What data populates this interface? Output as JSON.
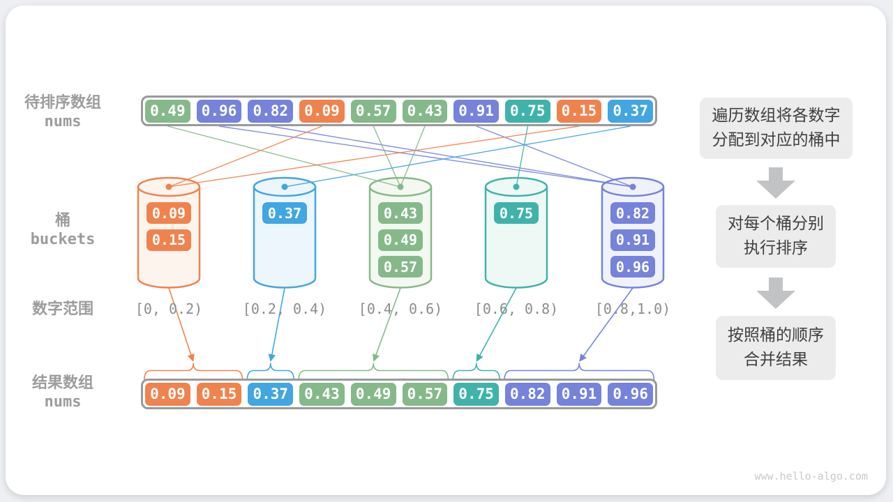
{
  "palette": {
    "orange": "#F0824E",
    "blue": "#41A6E1",
    "green": "#85B98A",
    "teal": "#3FB3A9",
    "purple": "#7583DB",
    "orange_fill": "#FDF4EE",
    "blue_fill": "#EDF6FC",
    "green_fill": "#F3F8F1",
    "teal_fill": "#EEF8F5",
    "purple_fill": "#F0F2FB",
    "label_gray": "#9C9C9C",
    "range_gray": "#8C8C8C",
    "container_border": "#97999B",
    "step_box_bg": "#ECECEC",
    "step_text": "#3F3F3F",
    "big_arrow_gray": "#C1C3C5",
    "watermark_gray": "#C9C9C9"
  },
  "labels": {
    "input_array": {
      "line1": "待排序数组",
      "line2": "nums"
    },
    "buckets": {
      "line1": "桶",
      "line2": "buckets"
    },
    "ranges": "数字范围",
    "result_array": {
      "line1": "结果数组",
      "line2": "nums"
    }
  },
  "input_array": {
    "cells": [
      {
        "value": "0.49",
        "color": "green"
      },
      {
        "value": "0.96",
        "color": "purple"
      },
      {
        "value": "0.82",
        "color": "purple"
      },
      {
        "value": "0.09",
        "color": "orange"
      },
      {
        "value": "0.57",
        "color": "green"
      },
      {
        "value": "0.43",
        "color": "green"
      },
      {
        "value": "0.91",
        "color": "purple"
      },
      {
        "value": "0.75",
        "color": "teal"
      },
      {
        "value": "0.15",
        "color": "orange"
      },
      {
        "value": "0.37",
        "color": "blue"
      }
    ]
  },
  "assignments": [
    2,
    4,
    4,
    0,
    2,
    2,
    4,
    3,
    0,
    1
  ],
  "buckets": [
    {
      "color": "orange",
      "items": [
        "0.09",
        "0.15"
      ],
      "range": "[0, 0.2)"
    },
    {
      "color": "blue",
      "items": [
        "0.37"
      ],
      "range": "[0.2, 0.4)"
    },
    {
      "color": "green",
      "items": [
        "0.43",
        "0.49",
        "0.57"
      ],
      "range": "[0.4, 0.6)"
    },
    {
      "color": "teal",
      "items": [
        "0.75"
      ],
      "range": "[0.6, 0.8)"
    },
    {
      "color": "purple",
      "items": [
        "0.82",
        "0.91",
        "0.96"
      ],
      "range": "[0.8,1.0)"
    }
  ],
  "result_array": {
    "cells": [
      {
        "value": "0.09",
        "color": "orange"
      },
      {
        "value": "0.15",
        "color": "orange"
      },
      {
        "value": "0.37",
        "color": "blue"
      },
      {
        "value": "0.43",
        "color": "green"
      },
      {
        "value": "0.49",
        "color": "green"
      },
      {
        "value": "0.57",
        "color": "green"
      },
      {
        "value": "0.75",
        "color": "teal"
      },
      {
        "value": "0.82",
        "color": "purple"
      },
      {
        "value": "0.91",
        "color": "purple"
      },
      {
        "value": "0.96",
        "color": "purple"
      }
    ],
    "groups": [
      {
        "bucket": 0,
        "start": 0,
        "end": 1
      },
      {
        "bucket": 1,
        "start": 2,
        "end": 2
      },
      {
        "bucket": 2,
        "start": 3,
        "end": 5
      },
      {
        "bucket": 3,
        "start": 6,
        "end": 6
      },
      {
        "bucket": 4,
        "start": 7,
        "end": 9
      }
    ]
  },
  "steps": [
    {
      "lines": [
        "遍历数组将各数字",
        "分配到对应的桶中"
      ]
    },
    {
      "lines": [
        "对每个桶分别",
        "执行排序"
      ]
    },
    {
      "lines": [
        "按照桶的顺序",
        "合并结果"
      ]
    }
  ],
  "watermark": "www.hello-algo.com"
}
